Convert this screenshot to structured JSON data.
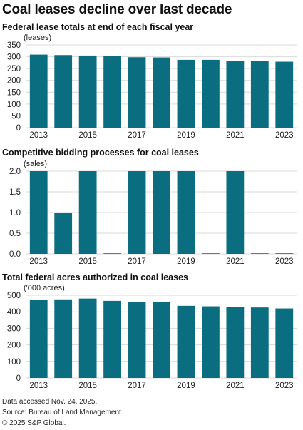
{
  "title": "Coal leases decline over last decade",
  "colors": {
    "bar": "#0a6e80",
    "grid": "#d9d9d9",
    "text": "#222222"
  },
  "chart_data": [
    {
      "type": "bar",
      "title": "Federal lease totals at end of each fiscal year",
      "unit_label": "(leases)",
      "categories": [
        "2013",
        "2014",
        "2015",
        "2016",
        "2017",
        "2018",
        "2019",
        "2020",
        "2021",
        "2022",
        "2023"
      ],
      "tick_labels": [
        "2013",
        "",
        "2015",
        "",
        "2017",
        "",
        "2019",
        "",
        "2021",
        "",
        "2023"
      ],
      "values": [
        309,
        307,
        305,
        302,
        298,
        297,
        287,
        287,
        283,
        282,
        279
      ],
      "yticks": [
        0,
        50,
        100,
        150,
        200,
        250,
        300,
        350
      ],
      "ylim": [
        0,
        350
      ],
      "grid": true
    },
    {
      "type": "bar",
      "title": "Competitive bidding processes for coal leases",
      "unit_label": "(sales)",
      "categories": [
        "2013",
        "2014",
        "2015",
        "2016",
        "2017",
        "2018",
        "2019",
        "2020",
        "2021",
        "2022",
        "2023"
      ],
      "tick_labels": [
        "2013",
        "",
        "2015",
        "",
        "2017",
        "",
        "2019",
        "",
        "2021",
        "",
        "2023"
      ],
      "values": [
        2,
        1,
        2,
        0,
        2,
        2,
        2,
        0,
        2,
        0,
        0
      ],
      "yticks": [
        0.0,
        0.5,
        1.0,
        1.5,
        2.0
      ],
      "ytick_labels": [
        "0.0",
        "0.5",
        "1.0",
        "1.5",
        "2.0"
      ],
      "ylim": [
        0,
        2
      ],
      "grid": true
    },
    {
      "type": "bar",
      "title": "Total federal acres authorized in coal leases",
      "unit_label": "('000 acres)",
      "categories": [
        "2013",
        "2014",
        "2015",
        "2016",
        "2017",
        "2018",
        "2019",
        "2020",
        "2021",
        "2022",
        "2023"
      ],
      "tick_labels": [
        "2013",
        "",
        "2015",
        "",
        "2017",
        "",
        "2019",
        "",
        "2021",
        "",
        "2023"
      ],
      "values": [
        474,
        475,
        480,
        466,
        458,
        457,
        436,
        433,
        431,
        426,
        420
      ],
      "yticks": [
        0,
        100,
        200,
        300,
        400,
        500
      ],
      "ylim": [
        0,
        500
      ],
      "grid": true
    }
  ],
  "footer": {
    "line1": "Data accessed Nov. 24, 2025.",
    "line2": "Source: Bureau of Land Management.",
    "line3": "© 2025 S&P Global."
  }
}
